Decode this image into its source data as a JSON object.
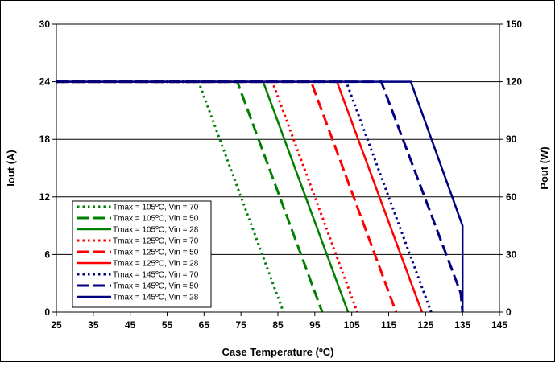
{
  "chart_data": {
    "type": "line",
    "title": "",
    "xlabel": "Case Temperature (ºC)",
    "ylabel": "Iout (A)",
    "y2label": "Pout (W)",
    "xlim": [
      25,
      145
    ],
    "ylim": [
      0,
      30
    ],
    "y2lim": [
      0,
      150
    ],
    "x_ticks": [
      "25",
      "35",
      "45",
      "55",
      "65",
      "75",
      "85",
      "95",
      "105",
      "115",
      "125",
      "135",
      "145"
    ],
    "y_ticks": [
      "0",
      "6",
      "12",
      "18",
      "24",
      "30"
    ],
    "y2_ticks": [
      "0",
      "30",
      "60",
      "90",
      "120",
      "150"
    ],
    "grid": "horizontal",
    "legend_position": "bottom-left",
    "series": [
      {
        "name": "Tmax = 105ºC, Vin = 70",
        "color": "#008000",
        "dash": "dot",
        "points": [
          [
            25,
            24
          ],
          [
            63.5,
            24
          ],
          [
            86.5,
            0
          ]
        ]
      },
      {
        "name": "Tmax = 105ºC, Vin = 50",
        "color": "#008000",
        "dash": "longdash",
        "points": [
          [
            25,
            24
          ],
          [
            74,
            24
          ],
          [
            97,
            0
          ]
        ]
      },
      {
        "name": "Tmax = 105ºC, Vin = 28",
        "color": "#008000",
        "dash": "solid",
        "points": [
          [
            25,
            24
          ],
          [
            81,
            24
          ],
          [
            104,
            0
          ]
        ]
      },
      {
        "name": "Tmax = 125ºC, Vin = 70",
        "color": "#ff0000",
        "dash": "dot",
        "points": [
          [
            25,
            24
          ],
          [
            83.5,
            24
          ],
          [
            106.5,
            0
          ]
        ]
      },
      {
        "name": "Tmax = 125ºC, Vin = 50",
        "color": "#ff0000",
        "dash": "longdash",
        "points": [
          [
            25,
            24
          ],
          [
            94,
            24
          ],
          [
            117,
            0
          ]
        ]
      },
      {
        "name": "Tmax = 125ºC, Vin = 28",
        "color": "#ff0000",
        "dash": "solid",
        "points": [
          [
            25,
            24
          ],
          [
            101,
            24
          ],
          [
            124,
            0
          ]
        ]
      },
      {
        "name": "Tmax = 145ºC, Vin = 70",
        "color": "#000080",
        "dash": "dot",
        "points": [
          [
            25,
            24
          ],
          [
            103.5,
            24
          ],
          [
            126.5,
            0
          ]
        ]
      },
      {
        "name": "Tmax = 145ºC, Vin = 50",
        "color": "#000080",
        "dash": "longdash",
        "points": [
          [
            25,
            24
          ],
          [
            113,
            24
          ],
          [
            134.5,
            2
          ],
          [
            135,
            0
          ]
        ]
      },
      {
        "name": "Tmax = 145ºC, Vin = 28",
        "color": "#000080",
        "dash": "solid",
        "points": [
          [
            25,
            24
          ],
          [
            121,
            24
          ],
          [
            135,
            9
          ],
          [
            135,
            0
          ]
        ]
      }
    ]
  }
}
